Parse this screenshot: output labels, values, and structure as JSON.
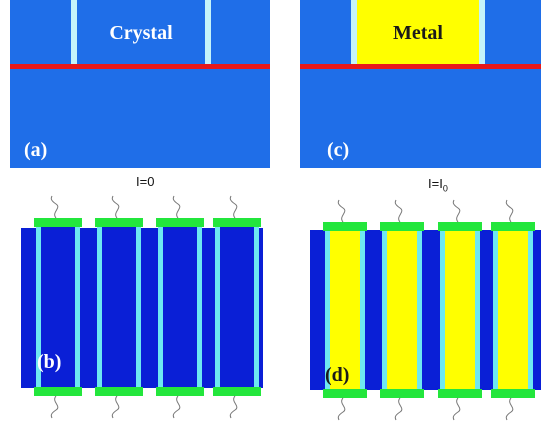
{
  "panel_a": {
    "material_label": "Crystal",
    "panel_label": "(a)"
  },
  "panel_c": {
    "material_label": "Metal",
    "panel_label": "(c)"
  },
  "panel_b": {
    "current_label_prefix": "I=0",
    "current_sub": "",
    "panel_label": "(b)"
  },
  "panel_d": {
    "current_label_prefix": "I=I",
    "current_sub": "0",
    "panel_label": "(d)"
  },
  "colors": {
    "substrate_blue": "#1f6ee8",
    "dark_blue": "#0a1fd6",
    "cyan_edge": "#6ee8f2",
    "interface_red": "#e8191b",
    "metal_yellow": "#ffff00",
    "contact_green": "#23e63c",
    "wire_gray": "#777777"
  }
}
